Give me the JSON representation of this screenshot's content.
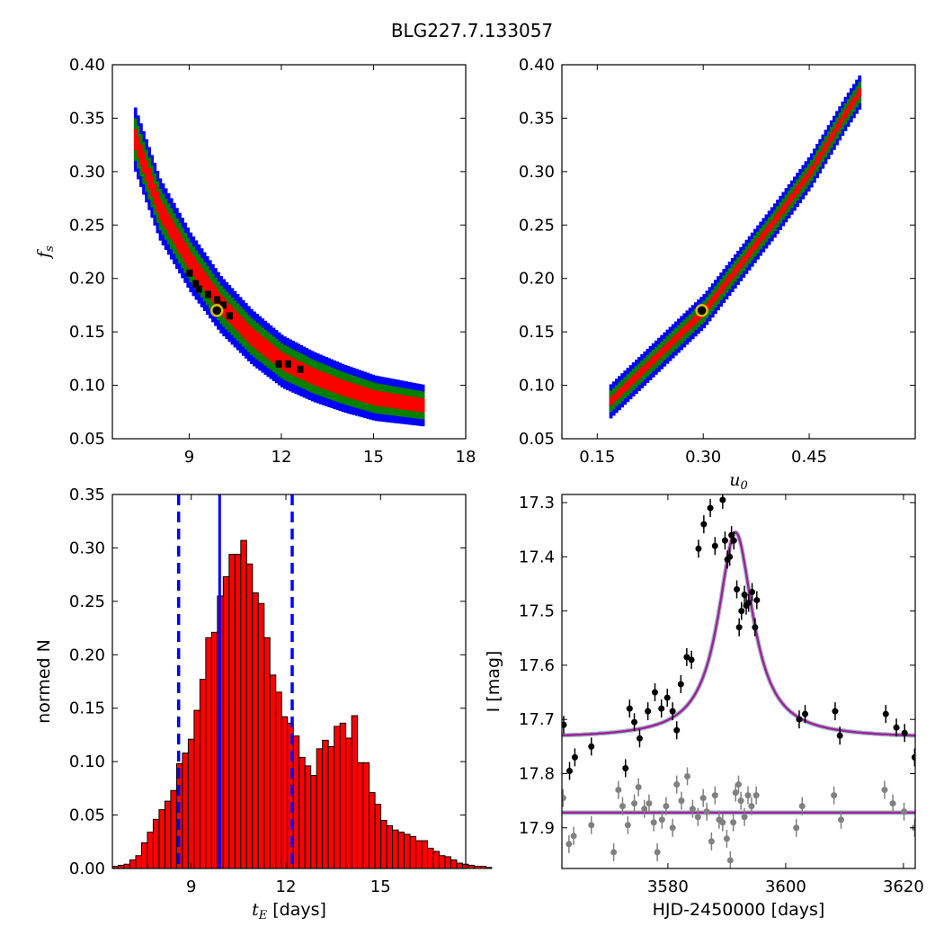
{
  "figure_title": "BLG227.7.133057",
  "chart_data": [
    {
      "panel": "top-left",
      "type": "heatmap",
      "title": "",
      "xlabel": "",
      "ylabel": "f_s",
      "xlim": [
        6.5,
        18
      ],
      "ylim": [
        0.05,
        0.4
      ],
      "xticks": [
        "9",
        "12",
        "15",
        "18"
      ],
      "yticks": [
        "0.05",
        "0.10",
        "0.15",
        "0.20",
        "0.25",
        "0.30",
        "0.35",
        "0.40"
      ],
      "levels": [
        {
          "name": "blue",
          "color": "#0000ff",
          "band_width": 0.03
        },
        {
          "name": "green",
          "color": "#008000",
          "band_width": 0.02
        },
        {
          "name": "red",
          "color": "#ff0000",
          "band_width": 0.01
        }
      ],
      "center_curve": {
        "x": [
          7.2,
          8,
          9,
          10,
          11,
          12,
          13,
          14,
          15,
          16.6
        ],
        "y": [
          0.33,
          0.265,
          0.215,
          0.175,
          0.145,
          0.122,
          0.108,
          0.097,
          0.088,
          0.081
        ]
      },
      "black_cells": {
        "x": [
          9.0,
          9.2,
          9.3,
          9.6,
          9.9,
          10.1,
          10.3,
          11.9,
          12.2,
          12.6
        ],
        "y": [
          0.205,
          0.195,
          0.19,
          0.185,
          0.18,
          0.175,
          0.165,
          0.12,
          0.12,
          0.115
        ]
      },
      "best_fit": {
        "x": 9.9,
        "y": 0.17,
        "ring_color": "#d4c000"
      }
    },
    {
      "panel": "top-right",
      "type": "heatmap",
      "title": "",
      "xlabel": "u_0",
      "ylabel": "",
      "xlim": [
        0.1,
        0.6
      ],
      "ylim": [
        0.05,
        0.4
      ],
      "xticks": [
        "0.15",
        "0.30",
        "0.45"
      ],
      "yticks": [
        "0.05",
        "0.10",
        "0.15",
        "0.20",
        "0.25",
        "0.30",
        "0.35",
        "0.40"
      ],
      "center_line": {
        "x": [
          0.167,
          0.3,
          0.4,
          0.45,
          0.5,
          0.52
        ],
        "y": [
          0.085,
          0.17,
          0.255,
          0.3,
          0.355,
          0.375
        ]
      },
      "best_fit": {
        "x": 0.298,
        "y": 0.17,
        "ring_color": "#d4c000"
      }
    },
    {
      "panel": "bottom-left",
      "type": "bar",
      "title": "",
      "xlabel": "t_E [days]",
      "ylabel": "normed N",
      "xlim": [
        6.5,
        17.7
      ],
      "ylim": [
        0.0,
        0.35
      ],
      "xticks": [
        "9",
        "12",
        "15"
      ],
      "yticks": [
        "0.00",
        "0.05",
        "0.10",
        "0.15",
        "0.20",
        "0.25",
        "0.30",
        "0.35"
      ],
      "bin_start": 6.5,
      "bin_width": 0.185,
      "values": [
        0.002,
        0.003,
        0.004,
        0.008,
        0.012,
        0.024,
        0.034,
        0.046,
        0.055,
        0.063,
        0.073,
        0.098,
        0.108,
        0.121,
        0.148,
        0.177,
        0.216,
        0.221,
        0.255,
        0.273,
        0.294,
        0.294,
        0.307,
        0.285,
        0.258,
        0.248,
        0.216,
        0.181,
        0.165,
        0.142,
        0.136,
        0.124,
        0.104,
        0.096,
        0.087,
        0.112,
        0.12,
        0.114,
        0.133,
        0.136,
        0.122,
        0.143,
        0.099,
        0.099,
        0.071,
        0.06,
        0.045,
        0.04,
        0.036,
        0.034,
        0.032,
        0.03,
        0.026,
        0.026,
        0.019,
        0.016,
        0.012,
        0.011,
        0.008,
        0.005,
        0.004,
        0.003,
        0.002,
        0.002,
        0.001
      ],
      "median": 9.9,
      "lower": 8.6,
      "upper": 12.2,
      "bar_color": "#ff0000",
      "line_color": "#0000ff"
    },
    {
      "panel": "bottom-right",
      "type": "scatter",
      "title": "",
      "xlabel": "HJD-2450000 [days]",
      "ylabel": "I [mag]",
      "xlim": [
        3562,
        3622
      ],
      "ylim": [
        17.975,
        17.285
      ],
      "xticks": [
        "3580",
        "3600",
        "3620"
      ],
      "yticks": [
        "17.3",
        "17.4",
        "17.5",
        "17.6",
        "17.7",
        "17.8",
        "17.9"
      ],
      "model": {
        "t0": 3591.5,
        "base": 17.735,
        "amp": 0.38,
        "tau": 3.6,
        "color": "#a020a0"
      },
      "residual_baseline": 17.872,
      "series": [
        {
          "color": "#000000",
          "x": [
            3562.3,
            3563.3,
            3564.2,
            3567.0,
            3572.8,
            3573.5,
            3574.3,
            3575.2,
            3576.6,
            3577.8,
            3578.9,
            3579.9,
            3580.8,
            3581.5,
            3582.2,
            3583.2,
            3584.0,
            3585.2,
            3586.1,
            3587.2,
            3588.0,
            3589.3,
            3589.7,
            3590.1,
            3590.5,
            3590.8,
            3591.2,
            3591.7,
            3592.1,
            3592.5,
            3593.0,
            3593.3,
            3593.7,
            3594.3,
            3594.8,
            3595.1,
            3602.3,
            3603.3,
            3608.4,
            3609.2,
            3617.0,
            3618.8,
            3620.2,
            3621.9
          ],
          "y": [
            17.71,
            17.795,
            17.77,
            17.75,
            17.79,
            17.68,
            17.705,
            17.735,
            17.685,
            17.65,
            17.68,
            17.66,
            17.685,
            17.72,
            17.635,
            17.585,
            17.59,
            17.385,
            17.34,
            17.31,
            17.38,
            17.295,
            17.37,
            17.405,
            17.4,
            17.36,
            17.37,
            17.46,
            17.53,
            17.5,
            17.47,
            17.49,
            17.485,
            17.465,
            17.53,
            17.48,
            17.7,
            17.69,
            17.685,
            17.73,
            17.69,
            17.715,
            17.725,
            17.77
          ]
        },
        {
          "color": "#808080",
          "x": [
            3562.2,
            3563.2,
            3564.0,
            3567.0,
            3570.8,
            3571.6,
            3572.3,
            3573.2,
            3574.3,
            3575.0,
            3576.0,
            3576.8,
            3577.6,
            3578.2,
            3579.0,
            3579.7,
            3580.8,
            3581.5,
            3582.3,
            3583.3,
            3584.2,
            3585.1,
            3586.0,
            3586.6,
            3587.4,
            3588.0,
            3588.7,
            3589.3,
            3590.0,
            3590.6,
            3591.1,
            3591.5,
            3592.0,
            3592.4,
            3593.0,
            3593.6,
            3594.2,
            3595.0,
            3601.8,
            3602.8,
            3608.2,
            3609.4,
            3616.8,
            3618.2,
            3620.1,
            3621.9
          ],
          "y": [
            17.845,
            17.93,
            17.915,
            17.895,
            17.945,
            17.83,
            17.86,
            17.895,
            17.855,
            17.825,
            17.865,
            17.855,
            17.89,
            17.945,
            17.885,
            17.86,
            17.9,
            17.82,
            17.85,
            17.805,
            17.865,
            17.88,
            17.845,
            17.87,
            17.925,
            17.84,
            17.885,
            17.89,
            17.92,
            17.96,
            17.89,
            17.835,
            17.82,
            17.85,
            17.88,
            17.84,
            17.86,
            17.84,
            17.9,
            17.86,
            17.84,
            17.885,
            17.83,
            17.855,
            17.87,
            17.9
          ]
        }
      ]
    }
  ]
}
